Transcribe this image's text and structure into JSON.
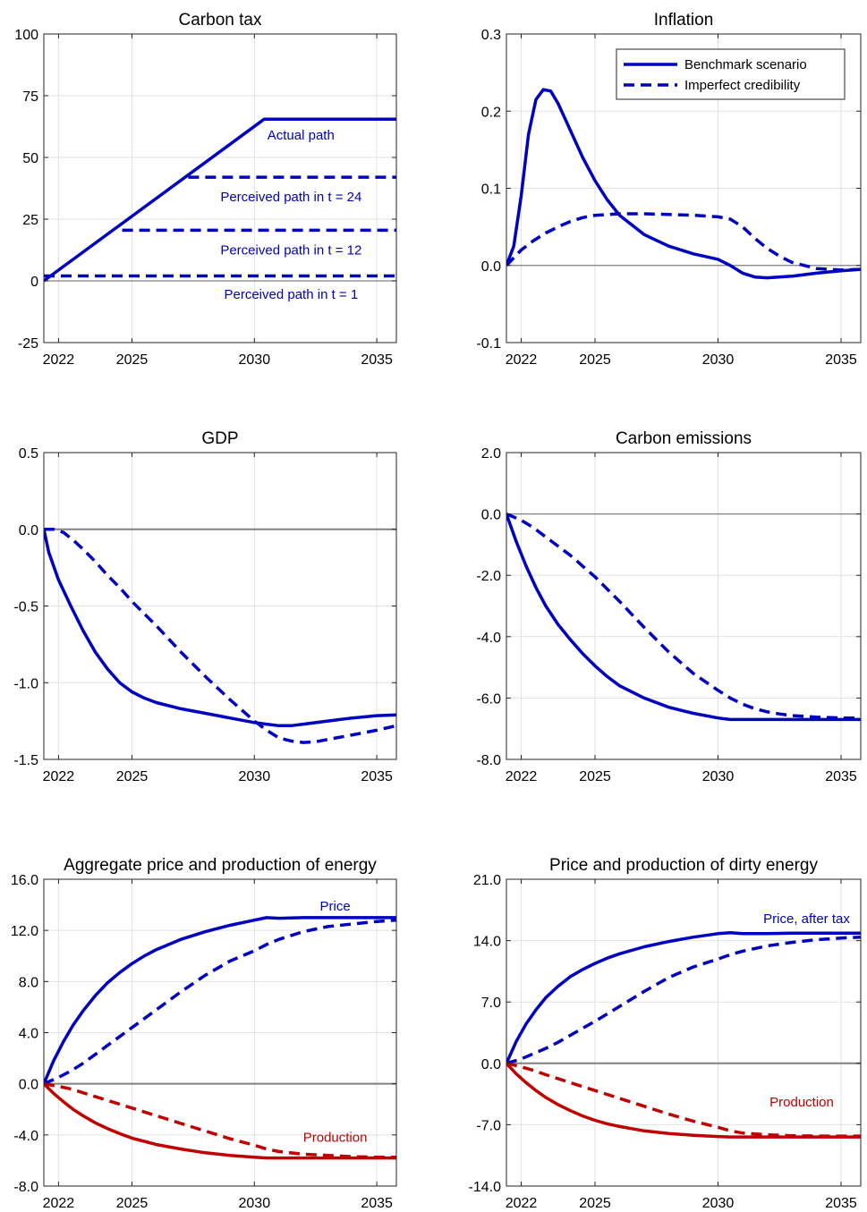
{
  "chart_data": [
    {
      "id": "carbon-tax",
      "type": "line",
      "title": "Carbon tax",
      "xlim": [
        2021.4,
        2035.8
      ],
      "ylim": [
        -25,
        100
      ],
      "xticks": [
        2022,
        2025,
        2030,
        2035
      ],
      "yticks": [
        -25,
        0,
        25,
        50,
        75,
        100
      ],
      "yticklabels": [
        "-25",
        "0",
        "25",
        "50",
        "75",
        "100"
      ],
      "grid": true,
      "zeroline": true,
      "series": [
        {
          "id": "actual",
          "color": "#0000c0",
          "dash": false,
          "x": [
            2021.4,
            2030.4,
            2035.8
          ],
          "y": [
            0,
            65.5,
            65.5
          ]
        },
        {
          "id": "perceived-24",
          "color": "#0000c0",
          "dash": true,
          "x": [
            2027.3,
            2035.8
          ],
          "y": [
            42,
            42
          ]
        },
        {
          "id": "perceived-12",
          "color": "#0000c0",
          "dash": true,
          "x": [
            2024.6,
            2035.8
          ],
          "y": [
            20.5,
            20.5
          ]
        },
        {
          "id": "perceived-1",
          "color": "#0000c0",
          "dash": true,
          "x": [
            2021.4,
            2035.8
          ],
          "y": [
            2,
            2
          ]
        }
      ],
      "annotations": [
        {
          "text": "Actual path",
          "x": 2031.9,
          "y": 59,
          "color": "#0000c0"
        },
        {
          "text": "Perceived path in t = 24",
          "x": 2031.5,
          "y": 34,
          "color": "#0000c0"
        },
        {
          "text": "Perceived path in t = 12",
          "x": 2031.5,
          "y": 12.5,
          "color": "#0000c0"
        },
        {
          "text": "Perceived path in t =  1",
          "x": 2031.5,
          "y": -5.5,
          "color": "#0000c0"
        }
      ]
    },
    {
      "id": "inflation",
      "type": "line",
      "title": "Inflation",
      "xlim": [
        2021.4,
        2035.8
      ],
      "ylim": [
        -0.1,
        0.3
      ],
      "xticks": [
        2022,
        2025,
        2030,
        2035
      ],
      "yticks": [
        -0.1,
        0.0,
        0.1,
        0.2,
        0.3
      ],
      "yticklabels": [
        "-0.1",
        "0.0",
        "0.1",
        "0.2",
        "0.3"
      ],
      "grid": true,
      "zeroline": true,
      "legend": {
        "position": "top-right",
        "entries": [
          {
            "label": "Benchmark scenario",
            "dash": false,
            "color": "#0000c0"
          },
          {
            "label": "Imperfect credibility",
            "dash": true,
            "color": "#0000c0"
          }
        ]
      },
      "series": [
        {
          "id": "benchmark",
          "color": "#0000c0",
          "dash": false,
          "x": [
            2021.4,
            2021.7,
            2022.0,
            2022.3,
            2022.6,
            2022.9,
            2023.2,
            2023.5,
            2024.0,
            2024.5,
            2025.0,
            2025.5,
            2026.0,
            2027.0,
            2028.0,
            2029.0,
            2030.0,
            2030.5,
            2031.0,
            2031.5,
            2032.0,
            2033.0,
            2034.0,
            2035.0,
            2035.8
          ],
          "y": [
            0,
            0.025,
            0.09,
            0.17,
            0.215,
            0.228,
            0.226,
            0.21,
            0.175,
            0.14,
            0.11,
            0.085,
            0.065,
            0.04,
            0.025,
            0.015,
            0.008,
            0.0,
            -0.01,
            -0.015,
            -0.016,
            -0.014,
            -0.01,
            -0.007,
            -0.005
          ]
        },
        {
          "id": "imperfect",
          "color": "#0000c0",
          "dash": true,
          "x": [
            2021.4,
            2022.0,
            2022.5,
            2023.0,
            2023.5,
            2024.0,
            2024.5,
            2025.0,
            2026.0,
            2027.0,
            2028.0,
            2029.0,
            2030.0,
            2030.5,
            2031.0,
            2031.5,
            2032.0,
            2032.5,
            2033.0,
            2034.0,
            2035.0,
            2035.8
          ],
          "y": [
            0,
            0.02,
            0.032,
            0.042,
            0.05,
            0.057,
            0.062,
            0.065,
            0.067,
            0.067,
            0.066,
            0.065,
            0.063,
            0.06,
            0.05,
            0.035,
            0.022,
            0.012,
            0.004,
            -0.004,
            -0.006,
            -0.005
          ]
        }
      ]
    },
    {
      "id": "gdp",
      "type": "line",
      "title": "GDP",
      "xlim": [
        2021.4,
        2035.8
      ],
      "ylim": [
        -1.5,
        0.5
      ],
      "xticks": [
        2022,
        2025,
        2030,
        2035
      ],
      "yticks": [
        -1.5,
        -1.0,
        -0.5,
        0.0,
        0.5
      ],
      "yticklabels": [
        "-1.5",
        "-1.0",
        "-0.5",
        "0.0",
        "0.5"
      ],
      "grid": true,
      "zeroline": true,
      "series": [
        {
          "id": "benchmark",
          "color": "#0000c0",
          "dash": false,
          "x": [
            2021.4,
            2021.6,
            2022.0,
            2022.5,
            2023.0,
            2023.5,
            2024.0,
            2024.5,
            2025.0,
            2025.5,
            2026.0,
            2027.0,
            2028.0,
            2029.0,
            2030.0,
            2030.5,
            2031.0,
            2031.5,
            2032.0,
            2033.0,
            2034.0,
            2035.0,
            2035.8
          ],
          "y": [
            0,
            -0.15,
            -0.33,
            -0.5,
            -0.66,
            -0.8,
            -0.91,
            -1.0,
            -1.06,
            -1.1,
            -1.13,
            -1.17,
            -1.2,
            -1.23,
            -1.26,
            -1.27,
            -1.28,
            -1.28,
            -1.27,
            -1.25,
            -1.23,
            -1.215,
            -1.21
          ]
        },
        {
          "id": "imperfect",
          "color": "#0000c0",
          "dash": true,
          "x": [
            2021.4,
            2021.8,
            2022.2,
            2022.6,
            2023.0,
            2023.5,
            2024.0,
            2024.5,
            2025.0,
            2026.0,
            2027.0,
            2028.0,
            2029.0,
            2030.0,
            2030.5,
            2031.0,
            2031.5,
            2032.0,
            2032.5,
            2033.0,
            2034.0,
            2035.0,
            2035.8
          ],
          "y": [
            0,
            0.0,
            -0.02,
            -0.07,
            -0.13,
            -0.21,
            -0.3,
            -0.38,
            -0.47,
            -0.63,
            -0.8,
            -0.96,
            -1.11,
            -1.25,
            -1.31,
            -1.36,
            -1.38,
            -1.39,
            -1.385,
            -1.37,
            -1.34,
            -1.31,
            -1.28
          ]
        }
      ]
    },
    {
      "id": "carbon-emissions",
      "type": "line",
      "title": "Carbon emissions",
      "xlim": [
        2021.4,
        2035.8
      ],
      "ylim": [
        -8.0,
        2.0
      ],
      "xticks": [
        2022,
        2025,
        2030,
        2035
      ],
      "yticks": [
        -8.0,
        -6.0,
        -4.0,
        -2.0,
        0.0,
        2.0
      ],
      "yticklabels": [
        "-8.0",
        "-6.0",
        "-4.0",
        "-2.0",
        "0.0",
        "2.0"
      ],
      "grid": true,
      "zeroline": true,
      "series": [
        {
          "id": "benchmark",
          "color": "#0000c0",
          "dash": false,
          "x": [
            2021.4,
            2021.8,
            2022.2,
            2022.6,
            2023.0,
            2023.5,
            2024.0,
            2024.5,
            2025.0,
            2025.5,
            2026.0,
            2027.0,
            2028.0,
            2029.0,
            2030.0,
            2030.5,
            2031.0,
            2032.0,
            2033.0,
            2034.0,
            2035.0,
            2035.8
          ],
          "y": [
            0,
            -0.9,
            -1.7,
            -2.4,
            -3.0,
            -3.6,
            -4.1,
            -4.55,
            -4.95,
            -5.3,
            -5.6,
            -6.0,
            -6.3,
            -6.5,
            -6.65,
            -6.7,
            -6.7,
            -6.7,
            -6.7,
            -6.7,
            -6.7,
            -6.7
          ]
        },
        {
          "id": "imperfect",
          "color": "#0000c0",
          "dash": true,
          "x": [
            2021.4,
            2022.0,
            2022.5,
            2023.0,
            2023.5,
            2024.0,
            2024.5,
            2025.0,
            2026.0,
            2027.0,
            2028.0,
            2029.0,
            2030.0,
            2030.5,
            2031.0,
            2031.5,
            2032.0,
            2032.5,
            2033.0,
            2034.0,
            2035.0,
            2035.8
          ],
          "y": [
            0,
            -0.2,
            -0.45,
            -0.75,
            -1.05,
            -1.35,
            -1.7,
            -2.05,
            -2.85,
            -3.7,
            -4.5,
            -5.2,
            -5.75,
            -6.0,
            -6.2,
            -6.35,
            -6.45,
            -6.52,
            -6.57,
            -6.62,
            -6.65,
            -6.65
          ]
        }
      ]
    },
    {
      "id": "aggregate-energy",
      "type": "line",
      "title": "Aggregate price and production of energy",
      "xlim": [
        2021.4,
        2035.8
      ],
      "ylim": [
        -8.0,
        16.0
      ],
      "xticks": [
        2022,
        2025,
        2030,
        2035
      ],
      "yticks": [
        -8.0,
        -4.0,
        0.0,
        4.0,
        8.0,
        12.0,
        16.0
      ],
      "yticklabels": [
        "-8.0",
        "-4.0",
        "0.0",
        "4.0",
        "8.0",
        "12.0",
        "16.0"
      ],
      "grid": true,
      "zeroline": true,
      "series": [
        {
          "id": "price-benchmark",
          "color": "#0000c0",
          "dash": false,
          "x": [
            2021.4,
            2021.8,
            2022.2,
            2022.6,
            2023.0,
            2023.5,
            2024.0,
            2024.5,
            2025.0,
            2025.5,
            2026.0,
            2027.0,
            2028.0,
            2029.0,
            2030.0,
            2030.5,
            2031.0,
            2032.0,
            2033.0,
            2034.0,
            2035.0,
            2035.8
          ],
          "y": [
            0,
            1.8,
            3.3,
            4.6,
            5.7,
            6.9,
            7.9,
            8.7,
            9.4,
            10.0,
            10.5,
            11.3,
            11.9,
            12.4,
            12.8,
            13.0,
            12.95,
            13.0,
            13.0,
            13.0,
            13.0,
            13.0
          ]
        },
        {
          "id": "price-imperfect",
          "color": "#0000c0",
          "dash": true,
          "x": [
            2021.4,
            2022.0,
            2022.5,
            2023.0,
            2023.5,
            2024.0,
            2024.5,
            2025.0,
            2026.0,
            2027.0,
            2028.0,
            2029.0,
            2030.0,
            2030.5,
            2031.0,
            2031.5,
            2032.0,
            2033.0,
            2034.0,
            2035.0,
            2035.8
          ],
          "y": [
            0,
            0.5,
            1.0,
            1.6,
            2.3,
            3.0,
            3.7,
            4.4,
            5.8,
            7.2,
            8.5,
            9.6,
            10.4,
            10.9,
            11.3,
            11.6,
            11.9,
            12.3,
            12.5,
            12.7,
            12.8
          ]
        },
        {
          "id": "production-benchmark",
          "color": "#c00000",
          "dash": false,
          "x": [
            2021.4,
            2021.8,
            2022.2,
            2022.6,
            2023.0,
            2023.5,
            2024.0,
            2024.5,
            2025.0,
            2025.5,
            2026.0,
            2027.0,
            2028.0,
            2029.0,
            2030.0,
            2030.5,
            2031.0,
            2032.0,
            2033.0,
            2034.0,
            2035.0,
            2035.8
          ],
          "y": [
            0,
            -0.75,
            -1.4,
            -2.0,
            -2.5,
            -3.05,
            -3.5,
            -3.9,
            -4.25,
            -4.5,
            -4.75,
            -5.1,
            -5.4,
            -5.6,
            -5.75,
            -5.8,
            -5.8,
            -5.8,
            -5.8,
            -5.8,
            -5.8,
            -5.8
          ]
        },
        {
          "id": "production-imperfect",
          "color": "#c00000",
          "dash": true,
          "x": [
            2021.4,
            2022.0,
            2022.5,
            2023.0,
            2024.0,
            2025.0,
            2026.0,
            2027.0,
            2028.0,
            2029.0,
            2030.0,
            2030.5,
            2031.0,
            2032.0,
            2033.0,
            2034.0,
            2035.0,
            2035.8
          ],
          "y": [
            0,
            -0.2,
            -0.4,
            -0.7,
            -1.3,
            -1.9,
            -2.5,
            -3.1,
            -3.7,
            -4.3,
            -4.8,
            -5.1,
            -5.3,
            -5.5,
            -5.6,
            -5.7,
            -5.75,
            -5.75
          ]
        }
      ],
      "annotations": [
        {
          "text": "Price",
          "x": 2033.3,
          "y": 13.9,
          "color": "#0000c0"
        },
        {
          "text": "Production",
          "x": 2033.3,
          "y": -4.2,
          "color": "#c00000"
        }
      ]
    },
    {
      "id": "dirty-energy",
      "type": "line",
      "title": "Price and production of dirty energy",
      "xlim": [
        2021.4,
        2035.8
      ],
      "ylim": [
        -14.0,
        21.0
      ],
      "xticks": [
        2022,
        2025,
        2030,
        2035
      ],
      "yticks": [
        -14.0,
        -7.0,
        0.0,
        7.0,
        14.0,
        21.0
      ],
      "yticklabels": [
        "-14.0",
        "-7.0",
        "0.0",
        "7.0",
        "14.0",
        "21.0"
      ],
      "grid": true,
      "zeroline": true,
      "series": [
        {
          "id": "price-benchmark",
          "color": "#0000c0",
          "dash": false,
          "x": [
            2021.4,
            2021.8,
            2022.2,
            2022.6,
            2023.0,
            2023.5,
            2024.0,
            2024.5,
            2025.0,
            2025.5,
            2026.0,
            2027.0,
            2028.0,
            2029.0,
            2030.0,
            2030.5,
            2031.0,
            2032.0,
            2033.0,
            2034.0,
            2035.0,
            2035.8
          ],
          "y": [
            0,
            2.5,
            4.5,
            6.1,
            7.5,
            8.8,
            9.9,
            10.7,
            11.4,
            12.0,
            12.5,
            13.3,
            13.9,
            14.4,
            14.8,
            14.9,
            14.8,
            14.8,
            14.85,
            14.85,
            14.85,
            14.85
          ]
        },
        {
          "id": "price-imperfect",
          "color": "#0000c0",
          "dash": true,
          "x": [
            2021.4,
            2022.0,
            2022.5,
            2023.0,
            2023.5,
            2024.0,
            2024.5,
            2025.0,
            2026.0,
            2027.0,
            2028.0,
            2029.0,
            2030.0,
            2030.5,
            2031.0,
            2031.5,
            2032.0,
            2033.0,
            2034.0,
            2035.0,
            2035.8
          ],
          "y": [
            0,
            0.5,
            1.1,
            1.7,
            2.4,
            3.2,
            4.0,
            4.8,
            6.5,
            8.2,
            9.8,
            11.0,
            11.9,
            12.4,
            12.8,
            13.1,
            13.4,
            13.8,
            14.1,
            14.3,
            14.4
          ]
        },
        {
          "id": "production-benchmark",
          "color": "#c00000",
          "dash": false,
          "x": [
            2021.4,
            2021.8,
            2022.2,
            2022.6,
            2023.0,
            2023.5,
            2024.0,
            2024.5,
            2025.0,
            2025.5,
            2026.0,
            2027.0,
            2028.0,
            2029.0,
            2030.0,
            2030.5,
            2031.0,
            2032.0,
            2033.0,
            2034.0,
            2035.0,
            2035.8
          ],
          "y": [
            0,
            -1.2,
            -2.2,
            -3.1,
            -3.9,
            -4.7,
            -5.4,
            -6.0,
            -6.5,
            -6.9,
            -7.2,
            -7.7,
            -8.0,
            -8.2,
            -8.35,
            -8.4,
            -8.4,
            -8.4,
            -8.4,
            -8.4,
            -8.4,
            -8.4
          ]
        },
        {
          "id": "production-imperfect",
          "color": "#c00000",
          "dash": true,
          "x": [
            2021.4,
            2022.0,
            2022.5,
            2023.0,
            2024.0,
            2025.0,
            2026.0,
            2027.0,
            2028.0,
            2029.0,
            2030.0,
            2030.5,
            2031.0,
            2032.0,
            2033.0,
            2034.0,
            2035.0,
            2035.8
          ],
          "y": [
            0,
            -0.4,
            -0.8,
            -1.3,
            -2.2,
            -3.1,
            -4.0,
            -4.9,
            -5.8,
            -6.6,
            -7.3,
            -7.7,
            -7.95,
            -8.15,
            -8.25,
            -8.3,
            -8.3,
            -8.3
          ]
        }
      ],
      "annotations": [
        {
          "text": "Price, after tax",
          "x": 2033.6,
          "y": 16.5,
          "color": "#0000c0"
        },
        {
          "text": "Production",
          "x": 2033.4,
          "y": -4.4,
          "color": "#c00000"
        }
      ]
    }
  ]
}
